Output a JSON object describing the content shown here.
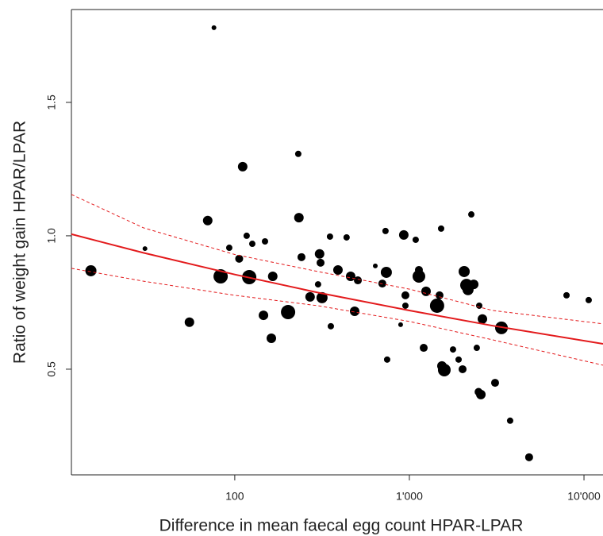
{
  "chart_data": {
    "type": "scatter",
    "x_label": "Difference in mean faecal egg count HPAR-LPAR",
    "y_label": "Ratio of weight gain HPAR/LPAR",
    "xlog": true,
    "xlim": [
      11.6,
      12850
    ],
    "ylim": [
      0.104,
      1.848
    ],
    "xticks": [
      100,
      {
        "value": 1000,
        "label": "1'000"
      },
      {
        "value": 10000,
        "label": "10'000"
      }
    ],
    "yticks": [
      0.5,
      {
        "value": 1.0,
        "label": "1.0"
      },
      1.5
    ],
    "point_color": "#000000",
    "x": [
      15,
      30.6,
      55,
      70,
      76,
      83,
      93,
      106,
      111,
      117,
      121,
      126,
      146,
      149,
      162,
      165,
      202,
      231,
      233,
      241,
      270,
      306,
      300,
      310,
      316,
      351,
      355,
      390,
      437,
      461,
      486,
      507,
      638,
      700,
      730,
      738,
      746,
      891,
      929,
      949,
      949,
      1087,
      1134,
      1134,
      1208,
      1246,
      1441,
      1488,
      1520,
      1536,
      1585,
      1778,
      1914,
      2017,
      2060,
      2125,
      2168,
      2263,
      2336,
      2432,
      2512,
      2620,
      2567,
      3096,
      3368,
      3776,
      4850,
      7943,
      10640,
      2490
    ],
    "y": [
      0.869,
      0.952,
      0.676,
      1.057,
      1.78,
      0.848,
      0.955,
      0.914,
      1.259,
      1.0,
      0.845,
      0.97,
      0.702,
      0.979,
      0.616,
      0.848,
      0.714,
      1.307,
      1.068,
      0.92,
      0.771,
      0.932,
      0.818,
      0.899,
      0.768,
      0.997,
      0.661,
      0.872,
      0.994,
      0.848,
      0.717,
      0.833,
      0.887,
      0.821,
      1.018,
      0.863,
      0.536,
      0.667,
      1.003,
      0.738,
      0.777,
      0.985,
      0.872,
      0.848,
      0.58,
      0.792,
      0.738,
      0.777,
      1.027,
      0.512,
      0.497,
      0.574,
      0.536,
      0.5,
      0.866,
      0.815,
      0.798,
      1.08,
      0.818,
      0.58,
      0.738,
      0.688,
      0.405,
      0.449,
      0.655,
      0.307,
      0.17,
      0.777,
      0.759,
      0.415
    ],
    "sizes": [
      7,
      3,
      6,
      6,
      3,
      9,
      4,
      5,
      6,
      4,
      9,
      4,
      6,
      4,
      6,
      6,
      9,
      4,
      6,
      5,
      6,
      6,
      4,
      5,
      7,
      4,
      4,
      6,
      4,
      6,
      6,
      5,
      3,
      5,
      4,
      7,
      4,
      3,
      6,
      4,
      5,
      4,
      5,
      8,
      5,
      6,
      9,
      5,
      4,
      6,
      8,
      4,
      4,
      5,
      7,
      8,
      7,
      4,
      6,
      4,
      4,
      6,
      6,
      5,
      8,
      4,
      5,
      4,
      4,
      5
    ],
    "curve_x": [
      11.6,
      30,
      100,
      300,
      1000,
      3000,
      12850
    ],
    "fit": {
      "color": "#e31a1c",
      "values": [
        1.006,
        0.936,
        0.855,
        0.787,
        0.72,
        0.663,
        0.595
      ]
    },
    "ci_upper": {
      "color": "#e31a1c",
      "values": [
        1.155,
        1.03,
        0.93,
        0.866,
        0.8,
        0.72,
        0.67
      ]
    },
    "ci_lower": {
      "color": "#e31a1c",
      "values": [
        0.878,
        0.83,
        0.777,
        0.738,
        0.679,
        0.61,
        0.515
      ]
    }
  }
}
